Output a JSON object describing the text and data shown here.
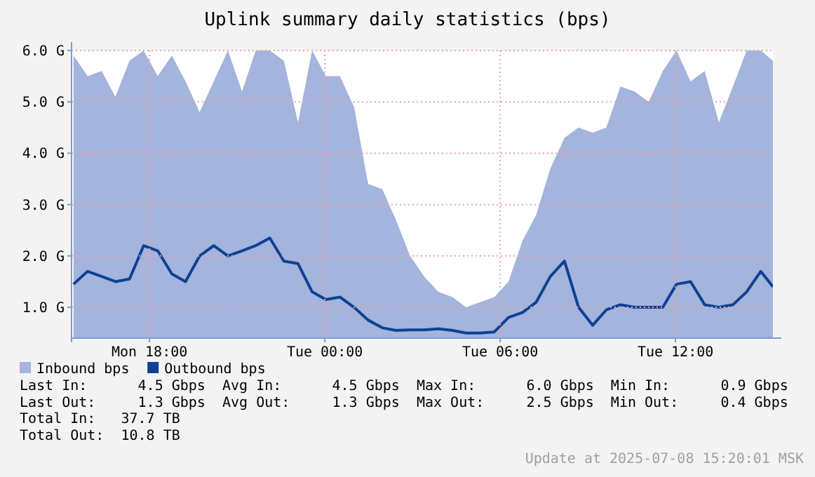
{
  "chart_data": {
    "type": "area",
    "title": "Uplink summary daily statistics (bps)",
    "x": [
      "2025-07-07T15:24",
      "2025-07-07T15:53",
      "2025-07-07T16:22",
      "2025-07-07T16:50",
      "2025-07-07T17:19",
      "2025-07-07T17:48",
      "2025-07-07T18:17",
      "2025-07-07T18:46",
      "2025-07-07T19:14",
      "2025-07-07T19:43",
      "2025-07-07T20:12",
      "2025-07-07T20:41",
      "2025-07-07T21:10",
      "2025-07-07T21:38",
      "2025-07-07T22:07",
      "2025-07-07T22:36",
      "2025-07-07T23:05",
      "2025-07-07T23:34",
      "2025-07-08T00:02",
      "2025-07-08T00:31",
      "2025-07-08T01:00",
      "2025-07-08T01:29",
      "2025-07-08T01:58",
      "2025-07-08T02:26",
      "2025-07-08T02:55",
      "2025-07-08T03:24",
      "2025-07-08T03:53",
      "2025-07-08T04:22",
      "2025-07-08T04:50",
      "2025-07-08T05:19",
      "2025-07-08T05:48",
      "2025-07-08T06:17",
      "2025-07-08T06:46",
      "2025-07-08T07:14",
      "2025-07-08T07:43",
      "2025-07-08T08:12",
      "2025-07-08T08:41",
      "2025-07-08T09:10",
      "2025-07-08T09:38",
      "2025-07-08T10:07",
      "2025-07-08T10:36",
      "2025-07-08T11:05",
      "2025-07-08T11:34",
      "2025-07-08T12:02",
      "2025-07-08T12:31",
      "2025-07-08T13:00",
      "2025-07-08T13:29",
      "2025-07-08T13:58",
      "2025-07-08T14:26",
      "2025-07-08T14:55",
      "2025-07-08T15:20"
    ],
    "series": [
      {
        "name": "Inbound bps",
        "color": "#a4b4dc",
        "values": [
          5.9,
          5.5,
          5.6,
          5.1,
          5.8,
          6.0,
          5.5,
          5.9,
          5.4,
          4.8,
          5.4,
          6.0,
          5.2,
          6.0,
          6.0,
          5.8,
          4.6,
          6.0,
          5.5,
          5.5,
          4.9,
          3.4,
          3.3,
          2.7,
          2.0,
          1.6,
          1.3,
          1.2,
          1.0,
          1.1,
          1.2,
          1.5,
          2.3,
          2.8,
          3.7,
          4.3,
          4.5,
          4.4,
          4.5,
          5.3,
          5.2,
          5.0,
          5.6,
          6.0,
          5.4,
          5.6,
          4.6,
          5.3,
          6.0,
          6.0,
          5.8
        ]
      },
      {
        "name": "Outbound bps",
        "type": "line",
        "color": "#0d4194",
        "values": [
          1.45,
          1.7,
          1.6,
          1.5,
          1.55,
          2.2,
          2.1,
          1.65,
          1.5,
          2.0,
          2.2,
          2.0,
          2.1,
          2.2,
          2.35,
          1.9,
          1.85,
          1.3,
          1.15,
          1.2,
          1.0,
          0.75,
          0.6,
          0.55,
          0.56,
          0.56,
          0.58,
          0.55,
          0.5,
          0.5,
          0.52,
          0.8,
          0.9,
          1.1,
          1.6,
          1.9,
          1.0,
          0.65,
          0.95,
          1.05,
          1.0,
          1.0,
          1.0,
          1.45,
          1.5,
          1.05,
          1.0,
          1.05,
          1.3,
          1.7,
          1.4
        ]
      }
    ],
    "xlim": [
      "2025-07-07T15:20",
      "2025-07-08T15:20"
    ],
    "xticks": [
      {
        "value": "2025-07-07T18:00",
        "label": "Mon 18:00"
      },
      {
        "value": "2025-07-08T00:00",
        "label": "Tue 00:00"
      },
      {
        "value": "2025-07-08T06:00",
        "label": "Tue 06:00"
      },
      {
        "value": "2025-07-08T12:00",
        "label": "Tue 12:00"
      }
    ],
    "ylim": [
      0.4,
      6.0
    ],
    "yticks": [
      {
        "value": 1,
        "label": "1.0 G"
      },
      {
        "value": 2,
        "label": "2.0 G"
      },
      {
        "value": 3,
        "label": "3.0 G"
      },
      {
        "value": 4,
        "label": "4.0 G"
      },
      {
        "value": 5,
        "label": "5.0 G"
      },
      {
        "value": 6,
        "label": "6.0 G"
      }
    ],
    "grid": true,
    "legend": "bottom left",
    "annotations": [
      "Last In:      4.5 Gbps  Avg In:      4.5 Gbps  Max In:      6.0 Gbps  Min In:      0.9 Gbps",
      "Last Out:     1.3 Gbps  Avg Out:     1.3 Gbps  Max Out:     2.5 Gbps  Min Out:     0.4 Gbps",
      "Total In:   37.7 TB",
      "Total Out:  10.8 TB",
      "Update at 2025-07-08 15:20:01 MSK"
    ]
  }
}
